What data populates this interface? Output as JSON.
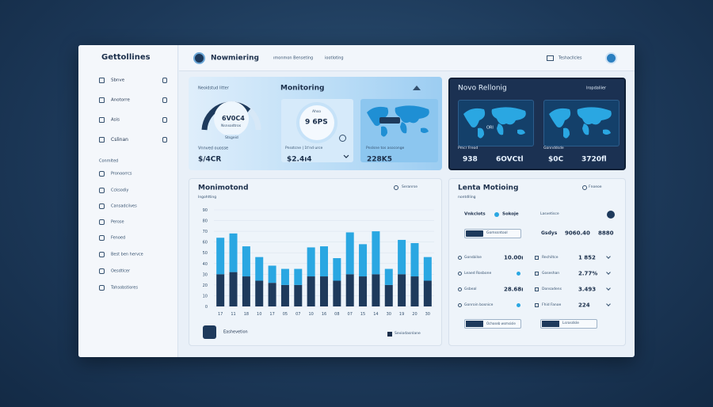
{
  "header": {
    "brand": "Gettollines",
    "title": "Nowmiering",
    "breadcrumb": [
      "ımonmon Benseting",
      "iootloting"
    ],
    "account": "Teshacllcles"
  },
  "sidebar": {
    "items": [
      "Sbnve",
      "Anotorre",
      "Asis",
      "Cslinan"
    ],
    "section": "Conmlted",
    "links": [
      "Pronoorrcs",
      "Ccksodiy",
      "Cansadciives",
      "Perose",
      "Fenoed",
      "Best ben hervce",
      "Oesdtlcer",
      "Tahsobstiores"
    ]
  },
  "monitoring": {
    "label": "Neoidstud litter",
    "title": "Monitoring",
    "gauge": {
      "value": "6V0C4",
      "caption": "Nsnsodtros",
      "status": "Stsgeid"
    },
    "gauge_footer": {
      "label": "Vnnved ouosse",
      "value": "$/4CR"
    },
    "metric": {
      "badge": "Ahso",
      "value": "9 6PS",
      "label": "Pnsstcne | 1t'nd urce",
      "amount": "$2.4ı4"
    },
    "map": {
      "label": "Pnslsne tos asoconge",
      "value": "228K5"
    }
  },
  "region": {
    "title": "Novo Rellonig",
    "link": "lropdaliier",
    "maps": [
      {
        "tag": "ORI",
        "label": "Pmcr Freod",
        "values": [
          "938",
          "6OVCtl"
        ]
      },
      {
        "label": "Gonnddsde",
        "values": [
          "$0C",
          "3720fl"
        ]
      }
    ]
  },
  "chart_panel": {
    "title": "Monimotond",
    "subtitle": "Ingohtting",
    "filter": "Seranrse",
    "footer": "Eashevetion",
    "legend": "Seviodasnlane"
  },
  "chart_data": {
    "type": "bar",
    "stacked": true,
    "categories": [
      "17",
      "11",
      "18",
      "10",
      "17",
      "05",
      "07",
      "10",
      "16",
      "08",
      "07",
      "15",
      "14",
      "30",
      "19",
      "20",
      "30"
    ],
    "series": [
      {
        "color": "#1e3a5c",
        "values": [
          30,
          32,
          28,
          24,
          22,
          20,
          20,
          28,
          28,
          24,
          30,
          28,
          30,
          20,
          30,
          28,
          24
        ]
      },
      {
        "color": "#2aa7e2",
        "values": [
          34,
          36,
          28,
          22,
          16,
          15,
          15,
          27,
          28,
          21,
          39,
          30,
          40,
          15,
          32,
          31,
          22
        ]
      }
    ],
    "ylim": [
      0,
      90
    ],
    "yticks": [
      0,
      10,
      20,
      30,
      40,
      50,
      60,
      70,
      80,
      90
    ],
    "grid": true
  },
  "details": {
    "title": "Lenta Motioing",
    "subtitle": "nontdlling",
    "filter": "Fnoeoe",
    "tabs": [
      "Vnkclots",
      "Sokoje",
      "Lasvetisce"
    ],
    "button": "Gomssntool",
    "summary": [
      "Gsdys",
      "9060.40",
      "8880"
    ],
    "left_rows": [
      {
        "label": "Gonsbilse",
        "value": "10.00ı"
      },
      {
        "label": "Leaed Rosbone"
      },
      {
        "label": "Gsbeal",
        "value": "28.68ı"
      },
      {
        "label": "Gonroin bosnice"
      }
    ],
    "right_rows": [
      {
        "label": "Rechiltce",
        "value": "1 852"
      },
      {
        "label": "Goseshan",
        "value": "2.77%"
      },
      {
        "label": "Donsadens",
        "value": "3.493"
      },
      {
        "label": "Fhid Fanoe",
        "value": "224"
      }
    ],
    "actions": [
      "Ochoseb wsmsisle",
      "Lsrosdsle"
    ]
  }
}
